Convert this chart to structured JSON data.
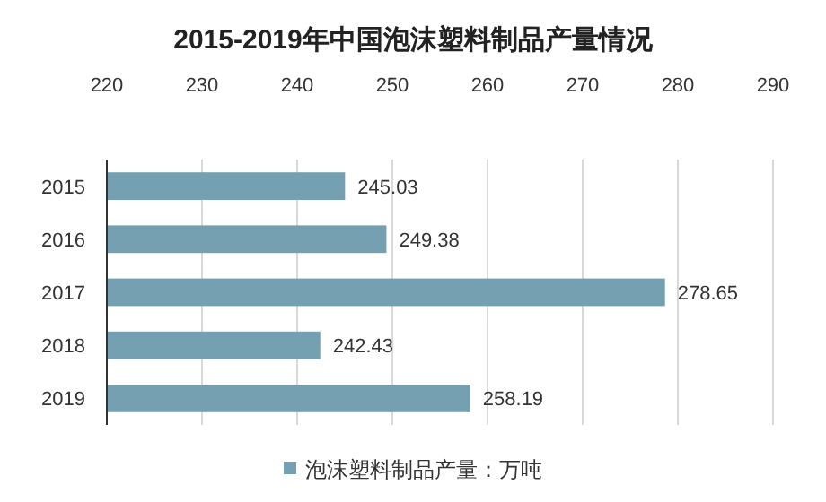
{
  "chart_data": {
    "type": "bar",
    "orientation": "horizontal",
    "title": "2015-2019年中国泡沫塑料制品产量情况",
    "categories": [
      "2015",
      "2016",
      "2017",
      "2018",
      "2019"
    ],
    "series": [
      {
        "name": "泡沫塑料制品产量：万吨",
        "color": "#74a0b2",
        "values": [
          245.03,
          249.38,
          278.65,
          242.43,
          258.19
        ]
      }
    ],
    "xlim": [
      220,
      290
    ],
    "xticks": [
      220,
      230,
      240,
      250,
      260,
      270,
      280,
      290
    ],
    "grid": "x",
    "data_labels": true,
    "legend": "bottom"
  }
}
